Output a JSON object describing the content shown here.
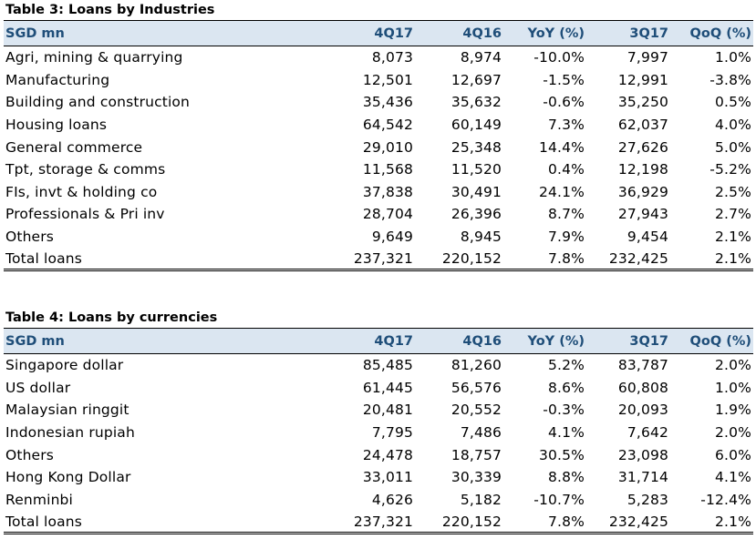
{
  "table3": {
    "title": "Table 3: Loans by Industries",
    "headers": [
      "SGD mn",
      "4Q17",
      "4Q16",
      "YoY (%)",
      "3Q17",
      "QoQ (%)"
    ],
    "rows": [
      [
        "Agri, mining & quarrying",
        "8,073",
        "8,974",
        "-10.0%",
        "7,997",
        "1.0%"
      ],
      [
        "Manufacturing",
        "12,501",
        "12,697",
        "-1.5%",
        "12,991",
        "-3.8%"
      ],
      [
        "Building and construction",
        "35,436",
        "35,632",
        "-0.6%",
        "35,250",
        "0.5%"
      ],
      [
        "Housing loans",
        "64,542",
        "60,149",
        "7.3%",
        "62,037",
        "4.0%"
      ],
      [
        "General commerce",
        "29,010",
        "25,348",
        "14.4%",
        "27,626",
        "5.0%"
      ],
      [
        "Tpt, storage & comms",
        "11,568",
        "11,520",
        "0.4%",
        "12,198",
        "-5.2%"
      ],
      [
        "FIs, invt & holding co",
        "37,838",
        "30,491",
        "24.1%",
        "36,929",
        "2.5%"
      ],
      [
        "Professionals & Pri inv",
        "28,704",
        "26,396",
        "8.7%",
        "27,943",
        "2.7%"
      ],
      [
        "Others",
        "9,649",
        "8,945",
        "7.9%",
        "9,454",
        "2.1%"
      ],
      [
        "Total loans",
        "237,321",
        "220,152",
        "7.8%",
        "232,425",
        "2.1%"
      ]
    ]
  },
  "table4": {
    "title": "Table 4: Loans by currencies",
    "headers": [
      "SGD mn",
      "4Q17",
      "4Q16",
      "YoY (%)",
      "3Q17",
      "QoQ (%)"
    ],
    "rows": [
      [
        "Singapore dollar",
        "85,485",
        "81,260",
        "5.2%",
        "83,787",
        "2.0%"
      ],
      [
        "US dollar",
        "61,445",
        "56,576",
        "8.6%",
        "60,808",
        "1.0%"
      ],
      [
        "Malaysian ringgit",
        "20,481",
        "20,552",
        "-0.3%",
        "20,093",
        "1.9%"
      ],
      [
        "Indonesian rupiah",
        "7,795",
        "7,486",
        "4.1%",
        "7,642",
        "2.0%"
      ],
      [
        "Others",
        "24,478",
        "18,757",
        "30.5%",
        "23,098",
        "6.0%"
      ],
      [
        "Hong Kong Dollar",
        "33,011",
        "30,339",
        "8.8%",
        "31,714",
        "4.1%"
      ],
      [
        "Renminbi",
        "4,626",
        "5,182",
        "-10.7%",
        "5,283",
        "-12.4%"
      ],
      [
        "Total loans",
        "237,321",
        "220,152",
        "7.8%",
        "232,425",
        "2.1%"
      ]
    ]
  },
  "colors": {
    "header_bg": "#dbe6f1",
    "header_text": "#1f4e79"
  }
}
